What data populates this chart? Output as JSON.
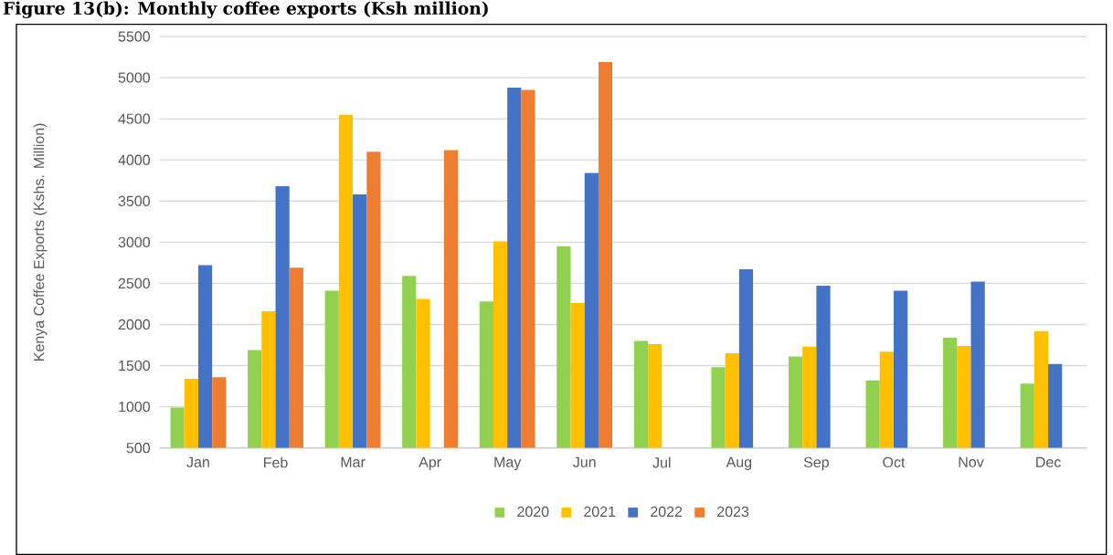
{
  "chart_data": {
    "type": "bar",
    "title": "Figure 13(b): Monthly coffee exports (Ksh million)",
    "ylabel": "Kenya Coffee Exports (Kshs. Million)",
    "categories": [
      "Jan",
      "Feb",
      "Mar",
      "Apr",
      "May",
      "Jun",
      "Jul",
      "Aug",
      "Sep",
      "Oct",
      "Nov",
      "Dec"
    ],
    "series": [
      {
        "name": "2020",
        "color": "#92d050",
        "values": [
          990,
          1690,
          2410,
          2590,
          2280,
          2950,
          1800,
          1480,
          1610,
          1320,
          1840,
          1280
        ]
      },
      {
        "name": "2021",
        "color": "#ffc000",
        "values": [
          1340,
          2160,
          4550,
          2310,
          3010,
          2260,
          1760,
          1650,
          1730,
          1670,
          1740,
          1920
        ]
      },
      {
        "name": "2022",
        "color": "#4472c4",
        "values": [
          2720,
          3680,
          3580,
          null,
          4880,
          3840,
          null,
          2670,
          2470,
          2410,
          2520,
          1520
        ]
      },
      {
        "name": "2023",
        "color": "#ed7d31",
        "values": [
          1360,
          2690,
          4100,
          4120,
          4850,
          5190,
          null,
          null,
          null,
          null,
          null,
          null
        ]
      }
    ],
    "ylim": [
      500,
      5500
    ],
    "yticks": [
      500,
      1000,
      1500,
      2000,
      2500,
      3000,
      3500,
      4000,
      4500,
      5000,
      5500
    ],
    "grid": "y",
    "legend": "bottom"
  }
}
